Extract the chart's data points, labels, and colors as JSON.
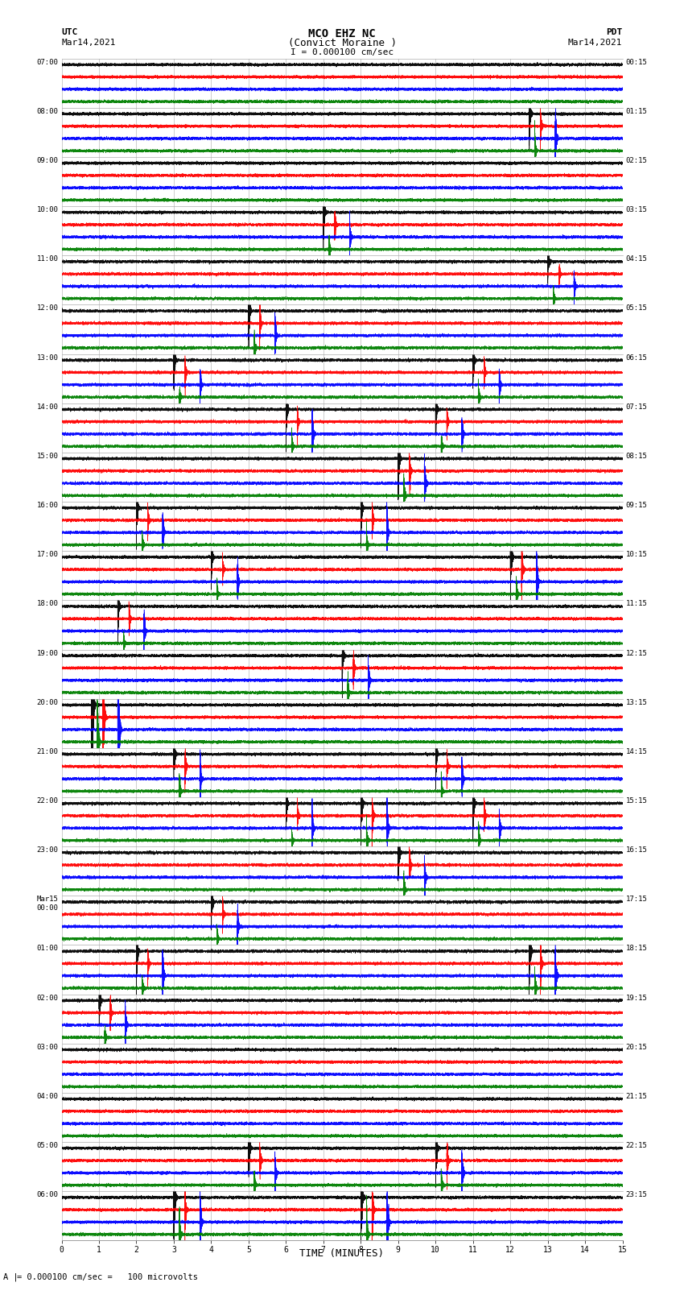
{
  "title_line1": "MCO EHZ NC",
  "title_line2": "(Convict Moraine )",
  "scale_label": "I = 0.000100 cm/sec",
  "left_header_line1": "UTC",
  "left_header_line2": "Mar14,2021",
  "right_header_line1": "PDT",
  "right_header_line2": "Mar14,2021",
  "footer_note": "= 0.000100 cm/sec =   100 microvolts",
  "footer_prefix": "A |",
  "xlabel": "TIME (MINUTES)",
  "left_times": [
    "07:00",
    "08:00",
    "09:00",
    "10:00",
    "11:00",
    "12:00",
    "13:00",
    "14:00",
    "15:00",
    "16:00",
    "17:00",
    "18:00",
    "19:00",
    "20:00",
    "21:00",
    "22:00",
    "23:00",
    "Mar15\n00:00",
    "01:00",
    "02:00",
    "03:00",
    "04:00",
    "05:00",
    "06:00"
  ],
  "right_times": [
    "00:15",
    "01:15",
    "02:15",
    "03:15",
    "04:15",
    "05:15",
    "06:15",
    "07:15",
    "08:15",
    "09:15",
    "10:15",
    "11:15",
    "12:15",
    "13:15",
    "14:15",
    "15:15",
    "16:15",
    "17:15",
    "18:15",
    "19:15",
    "20:15",
    "21:15",
    "22:15",
    "23:15"
  ],
  "num_rows": 24,
  "traces_per_row": 4,
  "colors": [
    "black",
    "red",
    "blue",
    "green"
  ],
  "bg_color": "#ffffff",
  "grid_color": "#bbbbbb",
  "minutes": 15,
  "sample_rate": 50,
  "fig_width": 8.5,
  "fig_height": 16.13
}
